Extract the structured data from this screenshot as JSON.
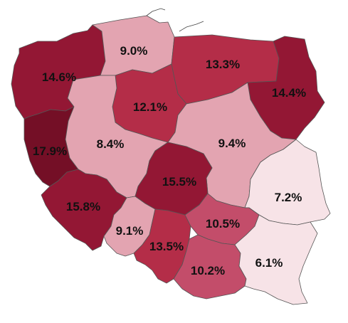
{
  "map": {
    "colors": {
      "very_light": "#f7e3e7",
      "light": "#e3a4b1",
      "medium": "#c34d6a",
      "dark": "#b42d48",
      "darker": "#931734",
      "darkest": "#740f26"
    },
    "regions": [
      {
        "id": "zachodniopomorskie",
        "value": "14.6%",
        "shade": "darker"
      },
      {
        "id": "pomorskie",
        "value": "9.0%",
        "shade": "light"
      },
      {
        "id": "warminsko-mazurskie",
        "value": "13.3%",
        "shade": "dark"
      },
      {
        "id": "podlaskie",
        "value": "14.4%",
        "shade": "darker"
      },
      {
        "id": "kujawsko-pomorskie",
        "value": "12.1%",
        "shade": "dark"
      },
      {
        "id": "lubuskie",
        "value": "17.9%",
        "shade": "darkest"
      },
      {
        "id": "wielkopolskie",
        "value": "8.4%",
        "shade": "light"
      },
      {
        "id": "mazowieckie",
        "value": "9.4%",
        "shade": "light"
      },
      {
        "id": "lodzkie",
        "value": "15.5%",
        "shade": "darker"
      },
      {
        "id": "lubelskie",
        "value": "7.2%",
        "shade": "very_light"
      },
      {
        "id": "dolnoslaskie",
        "value": "15.8%",
        "shade": "darker"
      },
      {
        "id": "opolskie",
        "value": "9.1%",
        "shade": "light"
      },
      {
        "id": "slaskie",
        "value": "13.5%",
        "shade": "dark"
      },
      {
        "id": "swietokrzyskie",
        "value": "10.5%",
        "shade": "medium"
      },
      {
        "id": "malopolskie",
        "value": "10.2%",
        "shade": "medium"
      },
      {
        "id": "podkarpackie",
        "value": "6.1%",
        "shade": "very_light"
      }
    ]
  }
}
